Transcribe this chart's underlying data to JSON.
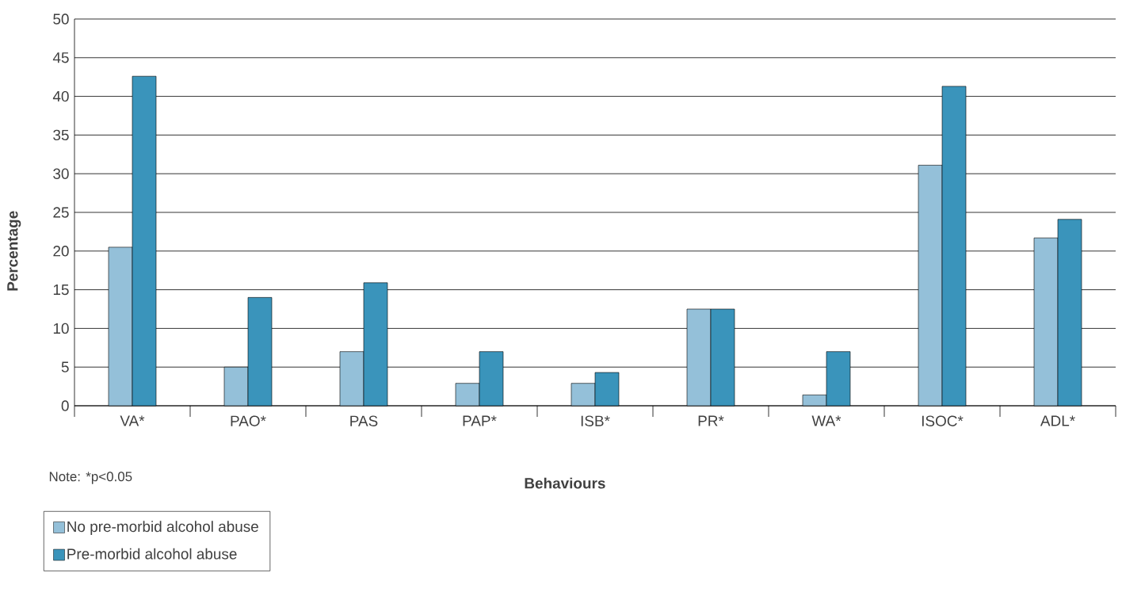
{
  "chart_data": {
    "type": "bar",
    "xlabel": "Behaviours",
    "ylabel": "Percentage",
    "categories": [
      "VA*",
      "PAO*",
      "PAS",
      "PAP*",
      "ISB*",
      "PR*",
      "WA*",
      "ISOC*",
      "ADL*"
    ],
    "series": [
      {
        "name": "No pre-morbid alcohol abuse",
        "color": "#94c0d9",
        "values": [
          20.5,
          5.0,
          7.0,
          2.9,
          2.9,
          12.5,
          1.4,
          31.1,
          21.7
        ]
      },
      {
        "name": "Pre-morbid alcohol abuse",
        "color": "#3a94bb",
        "values": [
          42.6,
          14.0,
          15.9,
          7.0,
          4.3,
          12.5,
          7.0,
          41.3,
          24.1
        ]
      }
    ],
    "ylim": [
      0,
      50
    ],
    "yticks": [
      0,
      5,
      10,
      15,
      20,
      25,
      30,
      35,
      40,
      45,
      50
    ],
    "grid": "y",
    "legend": "bottom left",
    "annotations": [
      "Note: *p<0.05"
    ]
  }
}
